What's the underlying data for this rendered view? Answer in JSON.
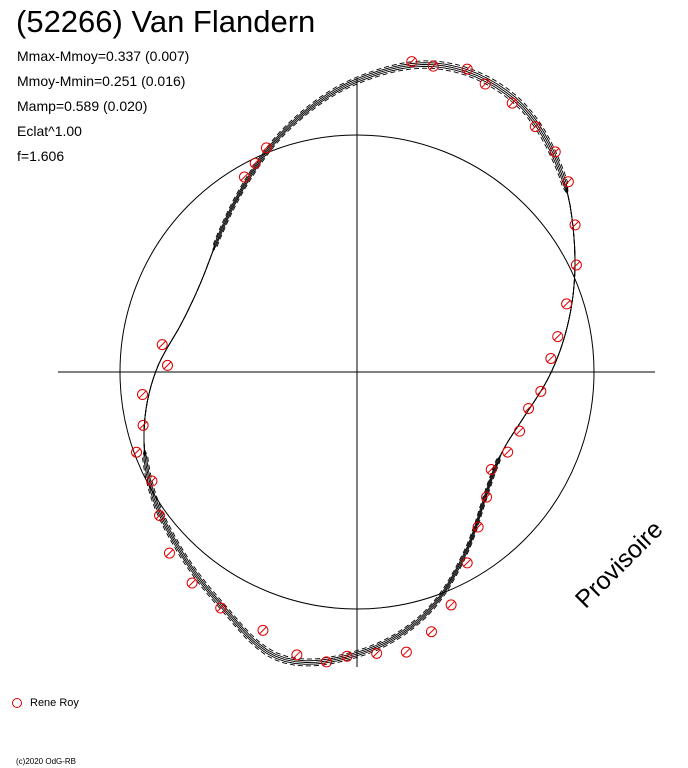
{
  "header": {
    "title": "(52266) Van Flandern",
    "stats": [
      "Mmax-Mmoy=0.337 (0.007)",
      "Mmoy-Mmin=0.251 (0.016)",
      "Mamp=0.589 (0.020)",
      "Eclat^1.00",
      "f=1.606"
    ]
  },
  "watermark": "Provisoire",
  "legend": {
    "label": "Rene Roy",
    "color": "#e00000"
  },
  "copyright": "(c)2020 OdG-RB",
  "chart_data": {
    "type": "scatter",
    "projection": "polar",
    "title": "(52266) Van Flandern",
    "reference_circle_radius": 1.0,
    "model_curve": {
      "description_points": "radius vs angle (degrees, counter-clockwise from +x axis)",
      "angles": [
        0,
        15,
        30,
        45,
        60,
        75,
        90,
        105,
        120,
        135,
        150,
        165,
        180,
        195,
        210,
        225,
        240,
        255,
        270,
        285,
        300,
        315,
        330,
        345,
        360
      ],
      "radii": [
        0.82,
        0.93,
        1.06,
        1.21,
        1.33,
        1.34,
        1.23,
        1.08,
        0.93,
        0.82,
        0.76,
        0.77,
        0.85,
        0.93,
        1.0,
        1.06,
        1.14,
        1.25,
        1.19,
        1.07,
        0.9,
        0.76,
        0.7,
        0.73,
        0.82
      ]
    },
    "series": [
      {
        "name": "Rene Roy",
        "angles": [
          4,
          10,
          18,
          26,
          34,
          42,
          48,
          54,
          60,
          66,
          70,
          76,
          80,
          172,
          178,
          186,
          194,
          200,
          208,
          216,
          224,
          232,
          240,
          250,
          258,
          264,
          268,
          274,
          280,
          286,
          292,
          300,
          308,
          316,
          324,
          332,
          340,
          348,
          354,
          112,
          116,
          120
        ],
        "radii": [
          0.82,
          0.86,
          0.93,
          1.03,
          1.11,
          1.2,
          1.25,
          1.28,
          1.31,
          1.33,
          1.36,
          1.33,
          1.33,
          0.83,
          0.8,
          0.91,
          0.93,
          0.99,
          0.98,
          1.03,
          1.1,
          1.13,
          1.15,
          1.16,
          1.22,
          1.23,
          1.2,
          1.19,
          1.2,
          1.14,
          1.06,
          0.93,
          0.83,
          0.76,
          0.7,
          0.72,
          0.73,
          0.74,
          0.78,
          1.02,
          0.98,
          0.95
        ]
      }
    ]
  }
}
